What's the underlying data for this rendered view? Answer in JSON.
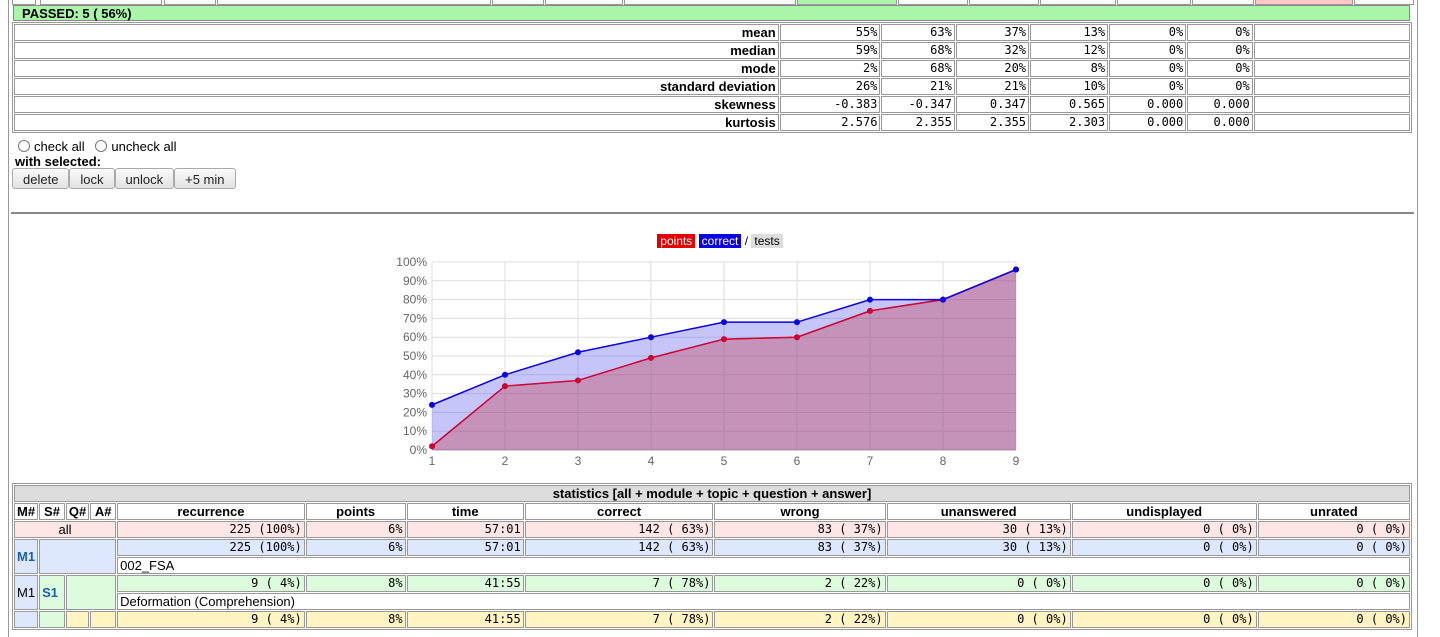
{
  "summary": {
    "passed": "PASSED: 5 ( 56%)",
    "rows": [
      {
        "label": "mean",
        "values": [
          "55%",
          "63%",
          "37%",
          "13%",
          "0%",
          "0%"
        ]
      },
      {
        "label": "median",
        "values": [
          "59%",
          "68%",
          "32%",
          "12%",
          "0%",
          "0%"
        ]
      },
      {
        "label": "mode",
        "values": [
          "2%",
          "68%",
          "20%",
          "8%",
          "0%",
          "0%"
        ]
      },
      {
        "label": "standard deviation",
        "values": [
          "26%",
          "21%",
          "21%",
          "10%",
          "0%",
          "0%"
        ]
      },
      {
        "label": "skewness",
        "values": [
          "-0.383",
          "-0.347",
          "0.347",
          "0.565",
          "0.000",
          "0.000"
        ]
      },
      {
        "label": "kurtosis",
        "values": [
          "2.576",
          "2.355",
          "2.355",
          "2.303",
          "0.000",
          "0.000"
        ]
      }
    ]
  },
  "controls": {
    "check_all": "check all",
    "uncheck_all": "uncheck all",
    "with_selected": "with selected:",
    "delete": "delete",
    "lock": "lock",
    "unlock": "unlock",
    "plus5": "+5 min"
  },
  "legend": {
    "points": "points",
    "correct": "correct",
    "sep": "/",
    "tests": "tests"
  },
  "chart_data": {
    "type": "area",
    "x": [
      1,
      2,
      3,
      4,
      5,
      6,
      7,
      8,
      9
    ],
    "y_ticks": [
      "0%",
      "10%",
      "20%",
      "30%",
      "40%",
      "50%",
      "60%",
      "70%",
      "80%",
      "90%",
      "100%"
    ],
    "ylim": [
      0,
      100
    ],
    "series": [
      {
        "name": "points",
        "color": "#cc0033",
        "values": [
          2,
          34,
          37,
          49,
          59,
          60,
          74,
          80,
          96
        ]
      },
      {
        "name": "correct",
        "color": "#0a00e3",
        "values": [
          24,
          40,
          52,
          60,
          68,
          68,
          80,
          80,
          96
        ]
      }
    ]
  },
  "stats_table": {
    "caption": "statistics [all + module + topic + question + answer]",
    "headers": [
      "M#",
      "S#",
      "Q#",
      "A#",
      "recurrence",
      "points",
      "time",
      "correct",
      "wrong",
      "unanswered",
      "undisplayed",
      "unrated"
    ],
    "all_row": {
      "label": "all",
      "values": [
        "225 (100%)",
        "6%",
        "57:01",
        "142 ( 63%)",
        "83 ( 37%)",
        "30 ( 13%)",
        "0 (  0%)",
        "0 (  0%)"
      ]
    },
    "m1_row": {
      "label": "M1",
      "values": [
        "225 (100%)",
        "6%",
        "57:01",
        "142 ( 63%)",
        "83 ( 37%)",
        "30 ( 13%)",
        "0 (  0%)",
        "0 (  0%)"
      ],
      "name": "002_FSA"
    },
    "s1_row": {
      "m": "M1",
      "label": "S1",
      "values": [
        "9 (  4%)",
        "8%",
        "41:55",
        "7 ( 78%)",
        "2 ( 22%)",
        "0 (  0%)",
        "0 (  0%)",
        "0 (  0%)"
      ],
      "name": "Deformation (Comprehension)"
    },
    "q_row": {
      "values": [
        "9 (  4%)",
        "8%",
        "41:55",
        "7 ( 78%)",
        "2 ( 22%)",
        "0 (  0%)",
        "0 (  0%)",
        "0 (  0%)"
      ]
    }
  }
}
